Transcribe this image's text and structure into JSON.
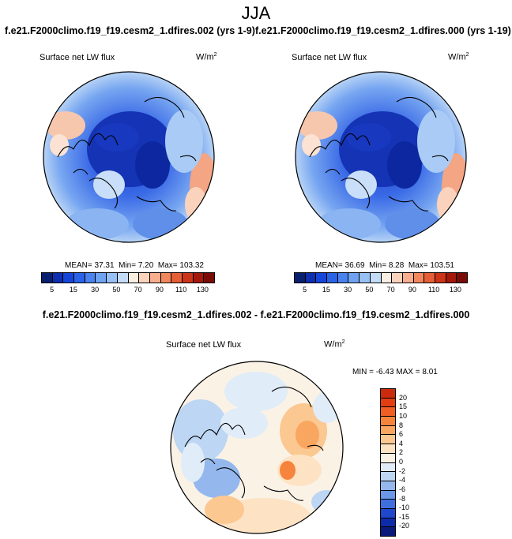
{
  "figure": {
    "season": "JJA",
    "variable": "Surface net LW flux",
    "units_base": "W/m",
    "units_exp": "2",
    "difference_title": "f.e21.F2000climo.f19_f19.cesm2_1.dfires.002 - f.e21.F2000climo.f19_f19.cesm2_1.dfires.000"
  },
  "panels": [
    {
      "title": "f.e21.F2000climo.f19_f19.cesm2_1.dfires.002 (yrs 1-9)",
      "mean_label": "MEAN=",
      "mean": "37.31",
      "min_label": "Min=",
      "min": "7.20",
      "max_label": "Max=",
      "max": "103.32"
    },
    {
      "title": "f.e21.F2000climo.f19_f19.cesm2_1.dfires.000 (yrs 1-19)",
      "mean_label": "MEAN=",
      "mean": "36.69",
      "min_label": "Min=",
      "min": "8.28",
      "max_label": "Max=",
      "max": "103.51"
    }
  ],
  "difference": {
    "stats_text": "MIN =  -6.43  MAX =   8.01"
  },
  "colorbar_main": {
    "colors": [
      "#08206f",
      "#0d2fb0",
      "#1646d9",
      "#2b63e8",
      "#4a83ef",
      "#6fa2f2",
      "#97c1f5",
      "#c4dcf7",
      "#fbeee2",
      "#fbd3bd",
      "#f8ad8f",
      "#f2875e",
      "#e55e36",
      "#cc3418",
      "#a5170b",
      "#7a0b06"
    ],
    "ticks": [
      "5",
      "15",
      "30",
      "50",
      "70",
      "90",
      "110",
      "130"
    ]
  },
  "colorbar_diff": {
    "colors": [
      "#cc2a0c",
      "#e23e12",
      "#f15e24",
      "#f7843c",
      "#f9a661",
      "#fbc891",
      "#fde3c4",
      "#fbf2e6",
      "#e0ecf8",
      "#bcd6f3",
      "#94b8ee",
      "#6a97e7",
      "#3f6ede",
      "#1f47cc",
      "#0d2aa8",
      "#081a7a"
    ],
    "ticks": [
      "20",
      "15",
      "10",
      "8",
      "6",
      "4",
      "2",
      "0",
      "-2",
      "-4",
      "-6",
      "-8",
      "-10",
      "-15",
      "-20"
    ]
  },
  "map_icons": [
    "north-polar-stereographic-map"
  ]
}
